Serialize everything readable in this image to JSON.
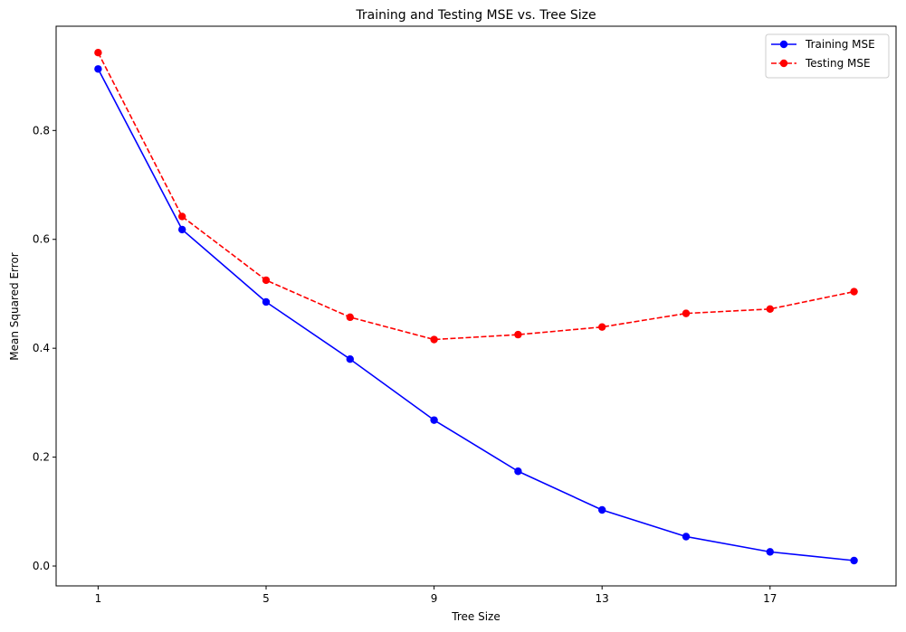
{
  "chart_data": {
    "type": "line",
    "title": "Training and Testing MSE vs. Tree Size",
    "xlabel": "Tree Size",
    "ylabel": "Mean Squared Error",
    "xlim": [
      0,
      20
    ],
    "ylim": [
      -0.0365,
      0.9915
    ],
    "xticks": [
      1,
      5,
      9,
      13,
      17
    ],
    "yticks": [
      0.0,
      0.2,
      0.4,
      0.6,
      0.8
    ],
    "ytick_labels": [
      "0.0",
      "0.2",
      "0.4",
      "0.6",
      "0.8"
    ],
    "x": [
      1,
      3,
      5,
      7,
      9,
      11,
      13,
      15,
      17,
      19
    ],
    "grid": false,
    "legend_position": "top-right",
    "series": [
      {
        "name": "Training MSE",
        "color": "#0000ff",
        "style": "solid",
        "marker": "circle",
        "values": [
          0.913,
          0.618,
          0.485,
          0.38,
          0.268,
          0.174,
          0.103,
          0.054,
          0.026,
          0.01
        ]
      },
      {
        "name": "Testing MSE",
        "color": "#ff0000",
        "style": "dashed",
        "marker": "circle",
        "values": [
          0.943,
          0.642,
          0.525,
          0.457,
          0.416,
          0.425,
          0.439,
          0.464,
          0.472,
          0.504
        ]
      }
    ]
  }
}
